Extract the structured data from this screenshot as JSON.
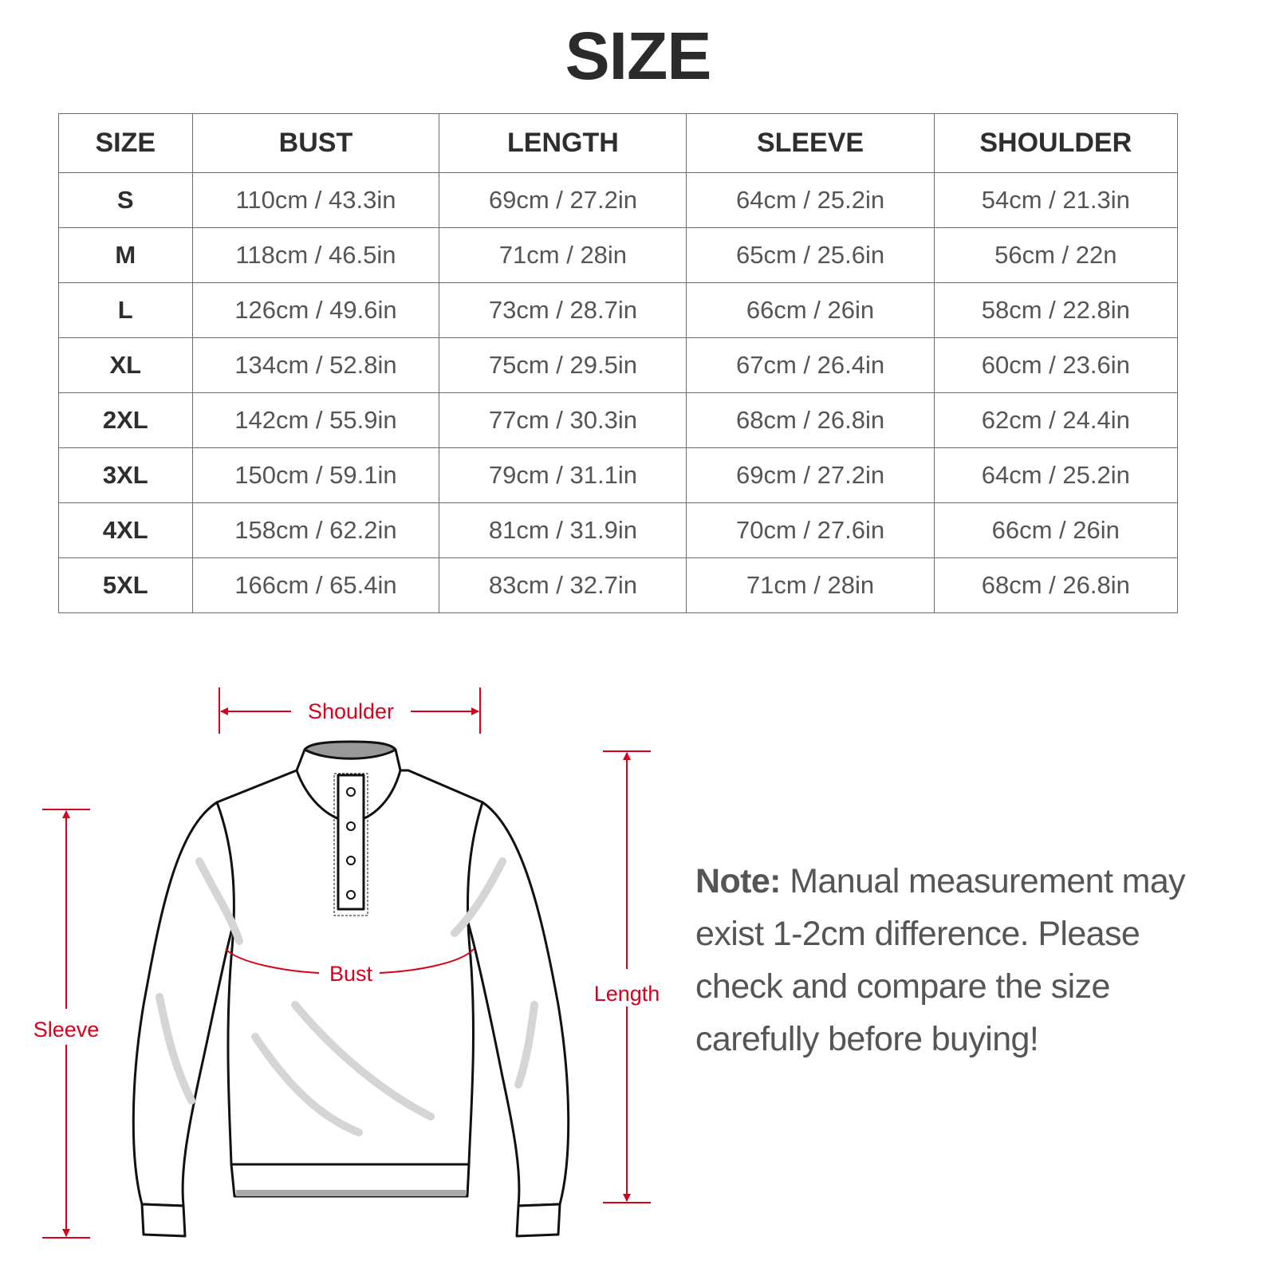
{
  "title": "SIZE",
  "table": {
    "headers": [
      "SIZE",
      "BUST",
      "LENGTH",
      "SLEEVE",
      "SHOULDER"
    ],
    "rows": [
      [
        "S",
        "110cm / 43.3in",
        "69cm / 27.2in",
        "64cm / 25.2in",
        "54cm / 21.3in"
      ],
      [
        "M",
        "118cm / 46.5in",
        "71cm / 28in",
        "65cm / 25.6in",
        "56cm / 22n"
      ],
      [
        "L",
        "126cm / 49.6in",
        "73cm / 28.7in",
        "66cm / 26in",
        "58cm / 22.8in"
      ],
      [
        "XL",
        "134cm / 52.8in",
        "75cm / 29.5in",
        "67cm / 26.4in",
        "60cm / 23.6in"
      ],
      [
        "2XL",
        "142cm / 55.9in",
        "77cm / 30.3in",
        "68cm / 26.8in",
        "62cm / 24.4in"
      ],
      [
        "3XL",
        "150cm / 59.1in",
        "79cm / 31.1in",
        "69cm / 27.2in",
        "64cm / 25.2in"
      ],
      [
        "4XL",
        "158cm / 62.2in",
        "81cm / 31.9in",
        "70cm / 27.6in",
        "66cm / 26in"
      ],
      [
        "5XL",
        "166cm / 65.4in",
        "83cm / 32.7in",
        "71cm / 28in",
        "68cm / 26.8in"
      ]
    ]
  },
  "diagram": {
    "labels": {
      "shoulder": "Shoulder",
      "bust": "Bust",
      "length": "Length",
      "sleeve": "Sleeve"
    },
    "measure_color": "#d9001b",
    "garment": "long-sleeve-henley-sweatshirt-icon"
  },
  "note": {
    "label": "Note:",
    "text": " Manual measurement may exist 1-2cm difference. Please check and compare the size carefully before buying!"
  }
}
